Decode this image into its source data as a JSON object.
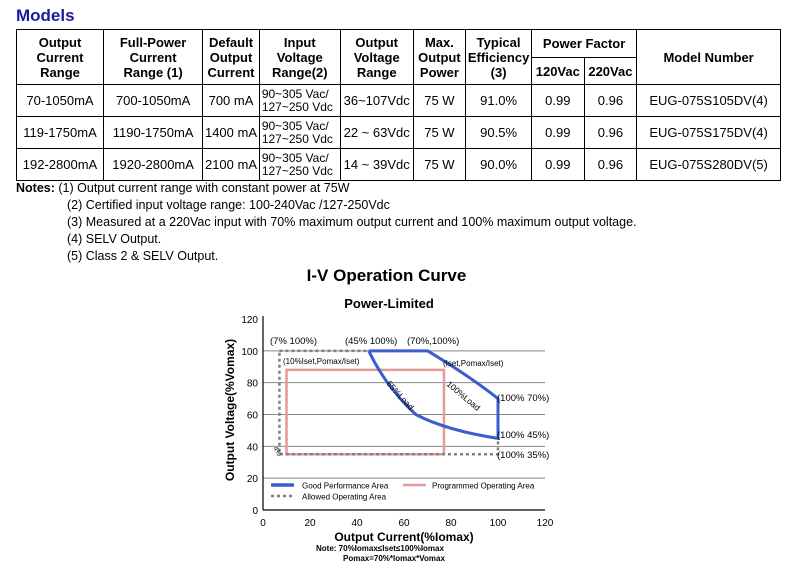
{
  "models_title": "Models",
  "table": {
    "headers": {
      "output_current_range": [
        "Output",
        "Current",
        "Range"
      ],
      "full_power_current_range": [
        "Full-Power",
        "Current",
        "Range (1)"
      ],
      "default_output_current": [
        "Default",
        "Output",
        "Current"
      ],
      "input_voltage_range": [
        "Input",
        "Voltage",
        "Range(2)"
      ],
      "output_voltage_range": [
        "Output",
        "Voltage",
        "Range"
      ],
      "max_output_power": [
        "Max.",
        "Output",
        "Power"
      ],
      "typical_efficiency": [
        "Typical",
        "Efficiency",
        "(3)"
      ],
      "power_factor": "Power Factor",
      "pf_120": "120Vac",
      "pf_220": "220Vac",
      "model_number": "Model Number"
    },
    "rows": [
      {
        "ocr": "70-1050mA",
        "fpcr": "700-1050mA",
        "doc": "700 mA",
        "ivr1": "90~305 Vac/",
        "ivr2": "127~250 Vdc",
        "ovr": "36~107Vdc",
        "pwr": "75 W",
        "eff": "91.0%",
        "pf120": "0.99",
        "pf220": "0.96",
        "model": "EUG-075S105DV(4)"
      },
      {
        "ocr": "119-1750mA",
        "fpcr": "1190-1750mA",
        "doc": "1400 mA",
        "ivr1": "90~305 Vac/",
        "ivr2": "127~250 Vdc",
        "ovr": "22 ~ 63Vdc",
        "pwr": "75 W",
        "eff": "90.5%",
        "pf120": "0.99",
        "pf220": "0.96",
        "model": "EUG-075S175DV(4)"
      },
      {
        "ocr": "192-2800mA",
        "fpcr": "1920-2800mA",
        "doc": "2100 mA",
        "ivr1": "90~305 Vac/",
        "ivr2": "127~250 Vdc",
        "ovr": "14 ~ 39Vdc",
        "pwr": "75 W",
        "eff": "90.0%",
        "pf120": "0.99",
        "pf220": "0.96",
        "model": "EUG-075S280DV(5)"
      }
    ]
  },
  "notes": {
    "label": "Notes:",
    "items": [
      "(1) Output current range with constant power at 75W",
      "(2) Certified input voltage range: 100-240Vac /127-250Vdc",
      "(3) Measured at a 220Vac input with 70% maximum output current and 100% maximum output voltage.",
      "(4) SELV Output.",
      "(5) Class 2 & SELV Output."
    ]
  },
  "curve": {
    "title": "I-V Operation Curve",
    "subtitle": "Power-Limited",
    "xlabel": "Output Current(%Iomax)",
    "ylabel": "Output Voltage(%Vomax)",
    "x_ticks": [
      "0",
      "20",
      "40",
      "60",
      "80",
      "100",
      "120"
    ],
    "y_ticks": [
      "0",
      "20",
      "40",
      "60",
      "80",
      "100",
      "120"
    ],
    "annotations": {
      "p7_100": "(7% 100%)",
      "p45_100": "(45% 100%)",
      "p70_100": "(70%,100%)",
      "p10_iset": "(10%Iset,Pomax/Iset)",
      "iset_pomax": "(Iset,Pomax/Iset)",
      "p100_70": "(100% 70%)",
      "p100_45": "(100% 45%)",
      "p100_35": "(100% 35%)",
      "load65": "65%Load",
      "load100": "100%Load",
      "load4": "4%"
    },
    "legend": {
      "good": "Good Performance Area",
      "allowed": "Allowed Operating Area",
      "programmed": "Programmed Operating Area"
    },
    "note_line1": "Note: 70%Iomax≤Iset≤100%Iomax",
    "note_line2": "Pomax=70%*Iomax*Vomax",
    "colors": {
      "good": "#3a5fcd",
      "allowed": "#808080",
      "programmed": "#e39a9a",
      "grid": "#888888"
    }
  },
  "chart_data": {
    "type": "line",
    "title": "I-V Operation Curve",
    "subtitle": "Power-Limited",
    "xlabel": "Output Current(%Iomax)",
    "ylabel": "Output Voltage(%Vomax)",
    "xlim": [
      0,
      120
    ],
    "ylim": [
      0,
      120
    ],
    "grid": true,
    "legend_position": "bottom",
    "series": [
      {
        "name": "Good Performance Area",
        "style": "solid",
        "points": [
          [
            45,
            100
          ],
          [
            70,
            100
          ],
          [
            100,
            70
          ],
          [
            100,
            45
          ],
          [
            65,
            60
          ],
          [
            45,
            100
          ]
        ]
      },
      {
        "name": "Allowed Operating Area",
        "style": "dashed",
        "points": [
          [
            7,
            100
          ],
          [
            70,
            100
          ],
          [
            100,
            70
          ],
          [
            100,
            35
          ],
          [
            7,
            35
          ],
          [
            7,
            100
          ]
        ]
      },
      {
        "name": "Programmed Operating Area",
        "style": "solid",
        "points": [
          [
            10,
            88
          ],
          [
            77,
            88
          ],
          [
            77,
            35
          ],
          [
            10,
            35
          ],
          [
            10,
            88
          ]
        ]
      }
    ]
  }
}
